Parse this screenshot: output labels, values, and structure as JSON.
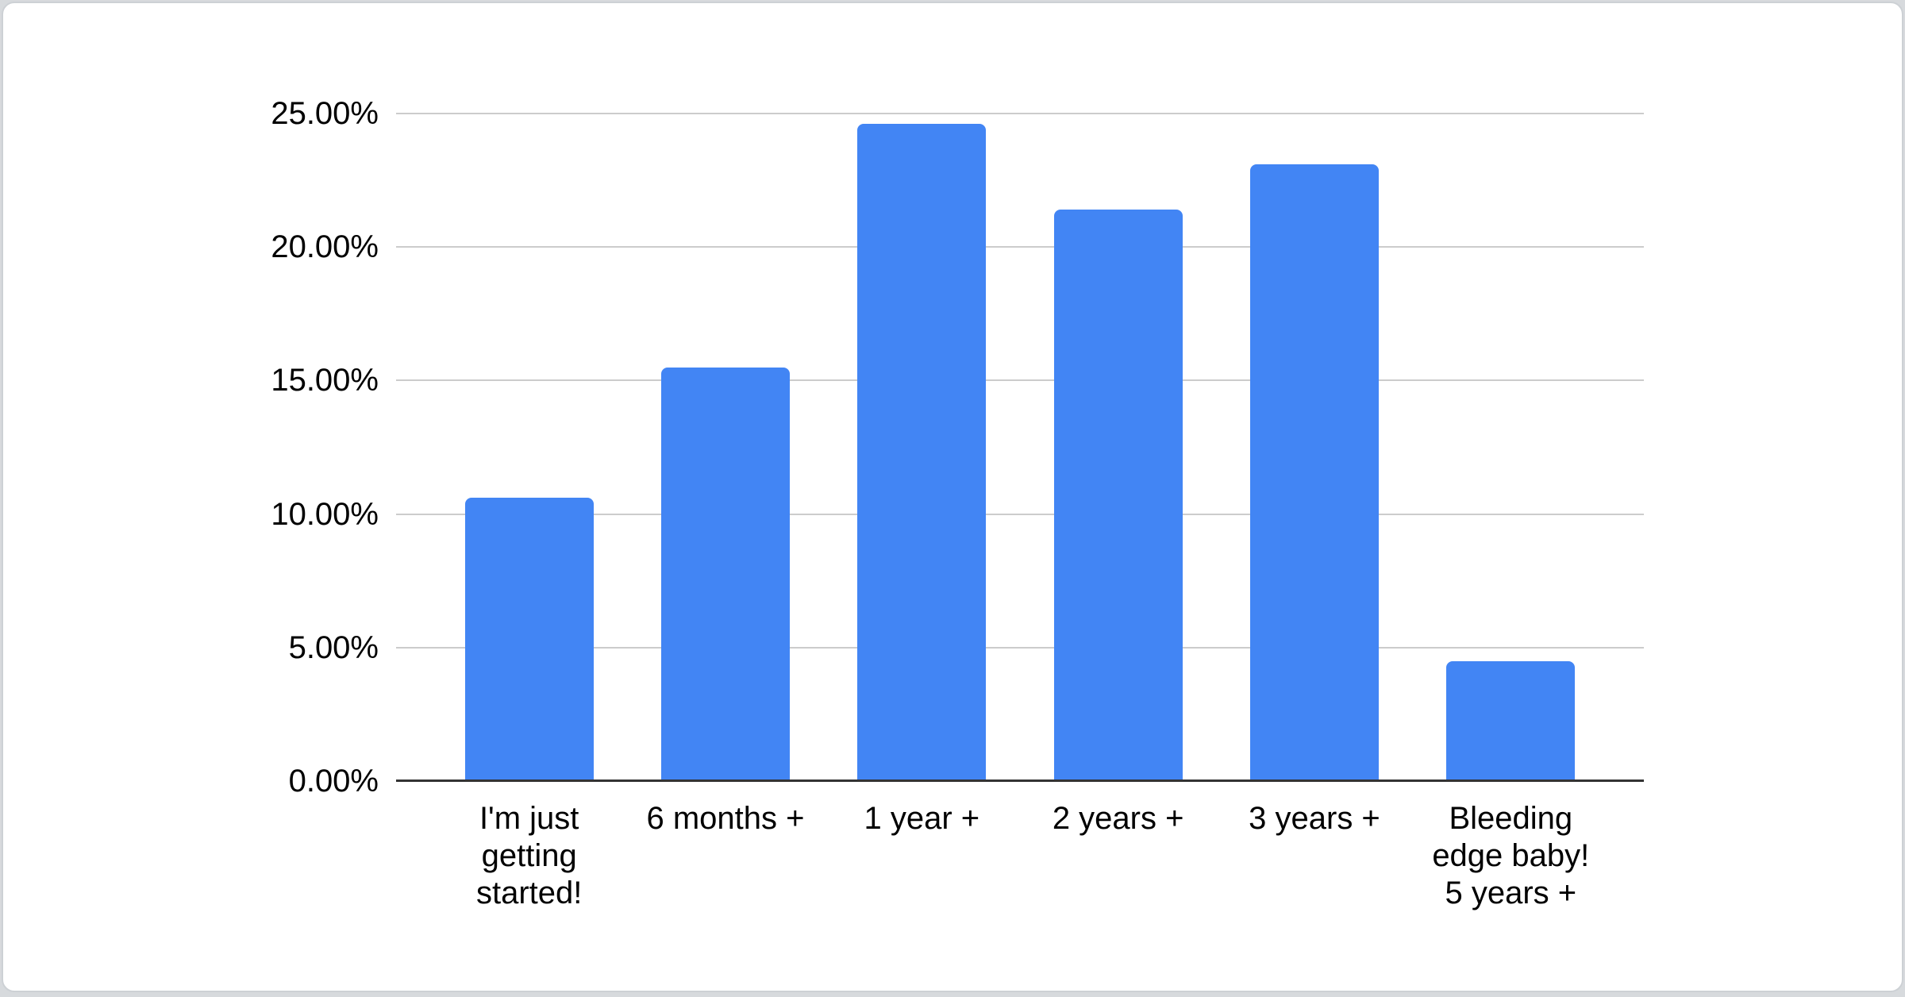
{
  "page": {
    "background_color": "#d7dadd",
    "card_color": "#ffffff",
    "card_border_color": "#cdd1d5"
  },
  "chart_data": {
    "type": "bar",
    "title": "",
    "xlabel": "",
    "ylabel": "",
    "categories": [
      "I'm just getting started!",
      "6 months +",
      "1 year +",
      "2 years +",
      "3 years +",
      "Bleeding edge baby! 5 years +"
    ],
    "values": [
      10.6,
      15.5,
      24.6,
      21.4,
      23.1,
      4.5
    ],
    "value_unit": "percent",
    "ylim": [
      0,
      25
    ],
    "ytick_step": 5,
    "ytick_labels": [
      "0.00%",
      "5.00%",
      "10.00%",
      "15.00%",
      "20.00%",
      "25.00%"
    ],
    "grid": true,
    "legend_position": "none",
    "bar_color": "#4285f4",
    "gridline_color": "#cccccc",
    "axis_baseline_color": "#333333",
    "text_color": "#000000"
  }
}
